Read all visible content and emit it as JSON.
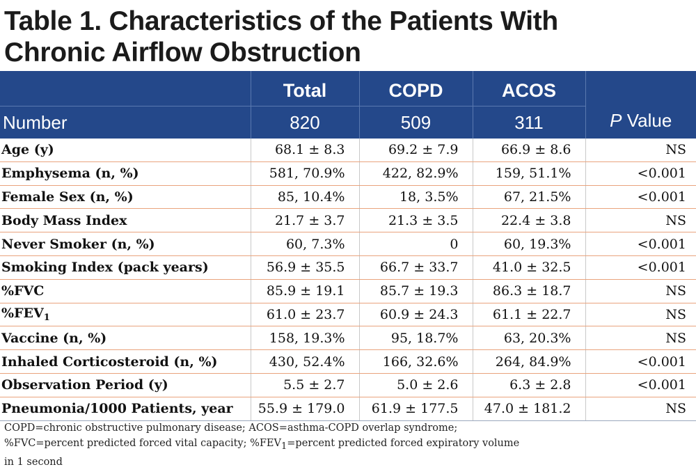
{
  "title": {
    "line1": "Table 1. Characteristics of the Patients With",
    "line2": "Chronic Airflow Obstruction"
  },
  "header": {
    "group_labels": [
      "Total",
      "COPD",
      "ACOS"
    ],
    "number_label": "Number",
    "counts": [
      "820",
      "509",
      "311"
    ],
    "p_italic": "P",
    "p_rest": " Value"
  },
  "rows": [
    {
      "label": "Age (y)",
      "total": "68.1 ± 8.3",
      "copd": "69.2 ± 7.9",
      "acos": "66.9 ± 8.6",
      "p": "NS"
    },
    {
      "label": "Emphysema (n, %)",
      "total": "581, 70.9%",
      "copd": "422, 82.9%",
      "acos": "159, 51.1%",
      "p": "<0.001"
    },
    {
      "label": "Female Sex (n, %)",
      "total": "85, 10.4%",
      "copd": "18, 3.5%",
      "acos": "67, 21.5%",
      "p": "<0.001"
    },
    {
      "label": "Body Mass Index",
      "total": "21.7 ± 3.7",
      "copd": "21.3 ± 3.5",
      "acos": "22.4 ± 3.8",
      "p": "NS"
    },
    {
      "label": "Never Smoker (n, %)",
      "total": "60, 7.3%",
      "copd": "0",
      "acos": "60, 19.3%",
      "p": "<0.001"
    },
    {
      "label": "Smoking Index (pack years)",
      "total": "56.9 ± 35.5",
      "copd": "66.7 ± 33.7",
      "acos": "41.0 ± 32.5",
      "p": "<0.001"
    },
    {
      "label": "%FVC",
      "total": "85.9 ± 19.1",
      "copd": "85.7 ± 19.3",
      "acos": "86.3 ± 18.7",
      "p": "NS"
    },
    {
      "label": "%FEV",
      "label_sub": "1",
      "total": "61.0 ± 23.7",
      "copd": "60.9 ± 24.3",
      "acos": "61.1 ± 22.7",
      "p": "NS"
    },
    {
      "label": "Vaccine (n, %)",
      "total": "158, 19.3%",
      "copd": "95, 18.7%",
      "acos": "63, 20.3%",
      "p": "NS"
    },
    {
      "label": "Inhaled Corticosteroid (n, %)",
      "total": "430, 52.4%",
      "copd": "166, 32.6%",
      "acos": "264, 84.9%",
      "p": "<0.001"
    },
    {
      "label": "Observation Period (y)",
      "total": "5.5 ± 2.7",
      "copd": "5.0 ± 2.6",
      "acos": "6.3 ± 2.8",
      "p": "<0.001"
    },
    {
      "label": "Pneumonia/1000 Patients, year",
      "total": "55.9 ± 179.0",
      "copd": "61.9 ± 177.5",
      "acos": "47.0 ± 181.2",
      "p": "NS"
    }
  ],
  "footnote": {
    "line1": "COPD=chronic obstructive pulmonary disease; ACOS=asthma-COPD overlap syndrome;",
    "line2_a": "%FVC=percent predicted forced vital capacity; %FEV",
    "line2_sub": "1",
    "line2_b": "=percent predicted forced expiratory volume",
    "line3": "in 1 second"
  },
  "colors": {
    "header_bg": "#24488a",
    "row_divider": "#e9a37d"
  }
}
